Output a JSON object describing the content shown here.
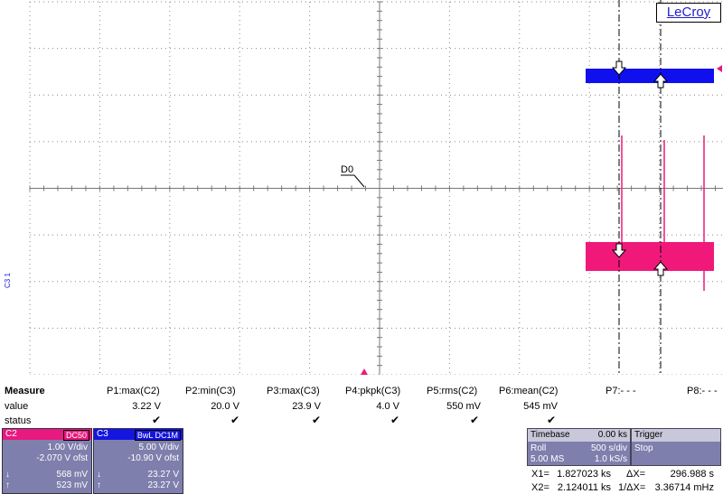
{
  "brand": "LeCroy",
  "trace_labels": {
    "d0": "D0",
    "left_markers": "C3 1"
  },
  "measure": {
    "title": "Measure",
    "row_labels": {
      "value": "value",
      "status": "status"
    },
    "params": [
      {
        "name": "P1:max(C2)",
        "value": "3.22 V",
        "ok": true
      },
      {
        "name": "P2:min(C3)",
        "value": "20.0 V",
        "ok": true
      },
      {
        "name": "P3:max(C3)",
        "value": "23.9 V",
        "ok": true
      },
      {
        "name": "P4:pkpk(C3)",
        "value": "4.0 V",
        "ok": true
      },
      {
        "name": "P5:rms(C2)",
        "value": "550 mV",
        "ok": true
      },
      {
        "name": "P6:mean(C2)",
        "value": "545 mV",
        "ok": true
      },
      {
        "name": "P7:- - -",
        "value": "",
        "ok": false
      },
      {
        "name": "P8:- - -",
        "value": "",
        "ok": false
      }
    ],
    "check_glyph": "✔"
  },
  "channels": {
    "c2": {
      "label": "C2",
      "tag": "DC50",
      "vdiv": "1.00 V/div",
      "offset": "-2.070 V ofst",
      "cursor1": "568 mV",
      "cursor2": "523 mV",
      "head_color": "#e8197f"
    },
    "c3": {
      "label": "C3",
      "tag": "BwL DC1M",
      "vdiv": "5.00 V/div",
      "offset": "-10.90 V ofst",
      "cursor1": "23.27 V",
      "cursor2": "23.27 V",
      "head_color": "#1515e0"
    }
  },
  "arrows": {
    "down": "↓",
    "up": "↑"
  },
  "timebase": {
    "title": "Timebase",
    "delay": "0.00 ks",
    "mode": "Roll",
    "tdiv": "500 s/div",
    "samples": "5.00 MS",
    "rate": "1.0 kS/s"
  },
  "trigger": {
    "title": "Trigger",
    "state": "Stop"
  },
  "cursors": {
    "x1_label": "X1=",
    "x1": "1.827023 ks",
    "x2_label": "X2=",
    "x2": "2.124011 ks",
    "dx_label": "ΔX=",
    "dx": "296.988 s",
    "inv_label": "1/ΔX=",
    "inv": "3.36714 mHz"
  }
}
